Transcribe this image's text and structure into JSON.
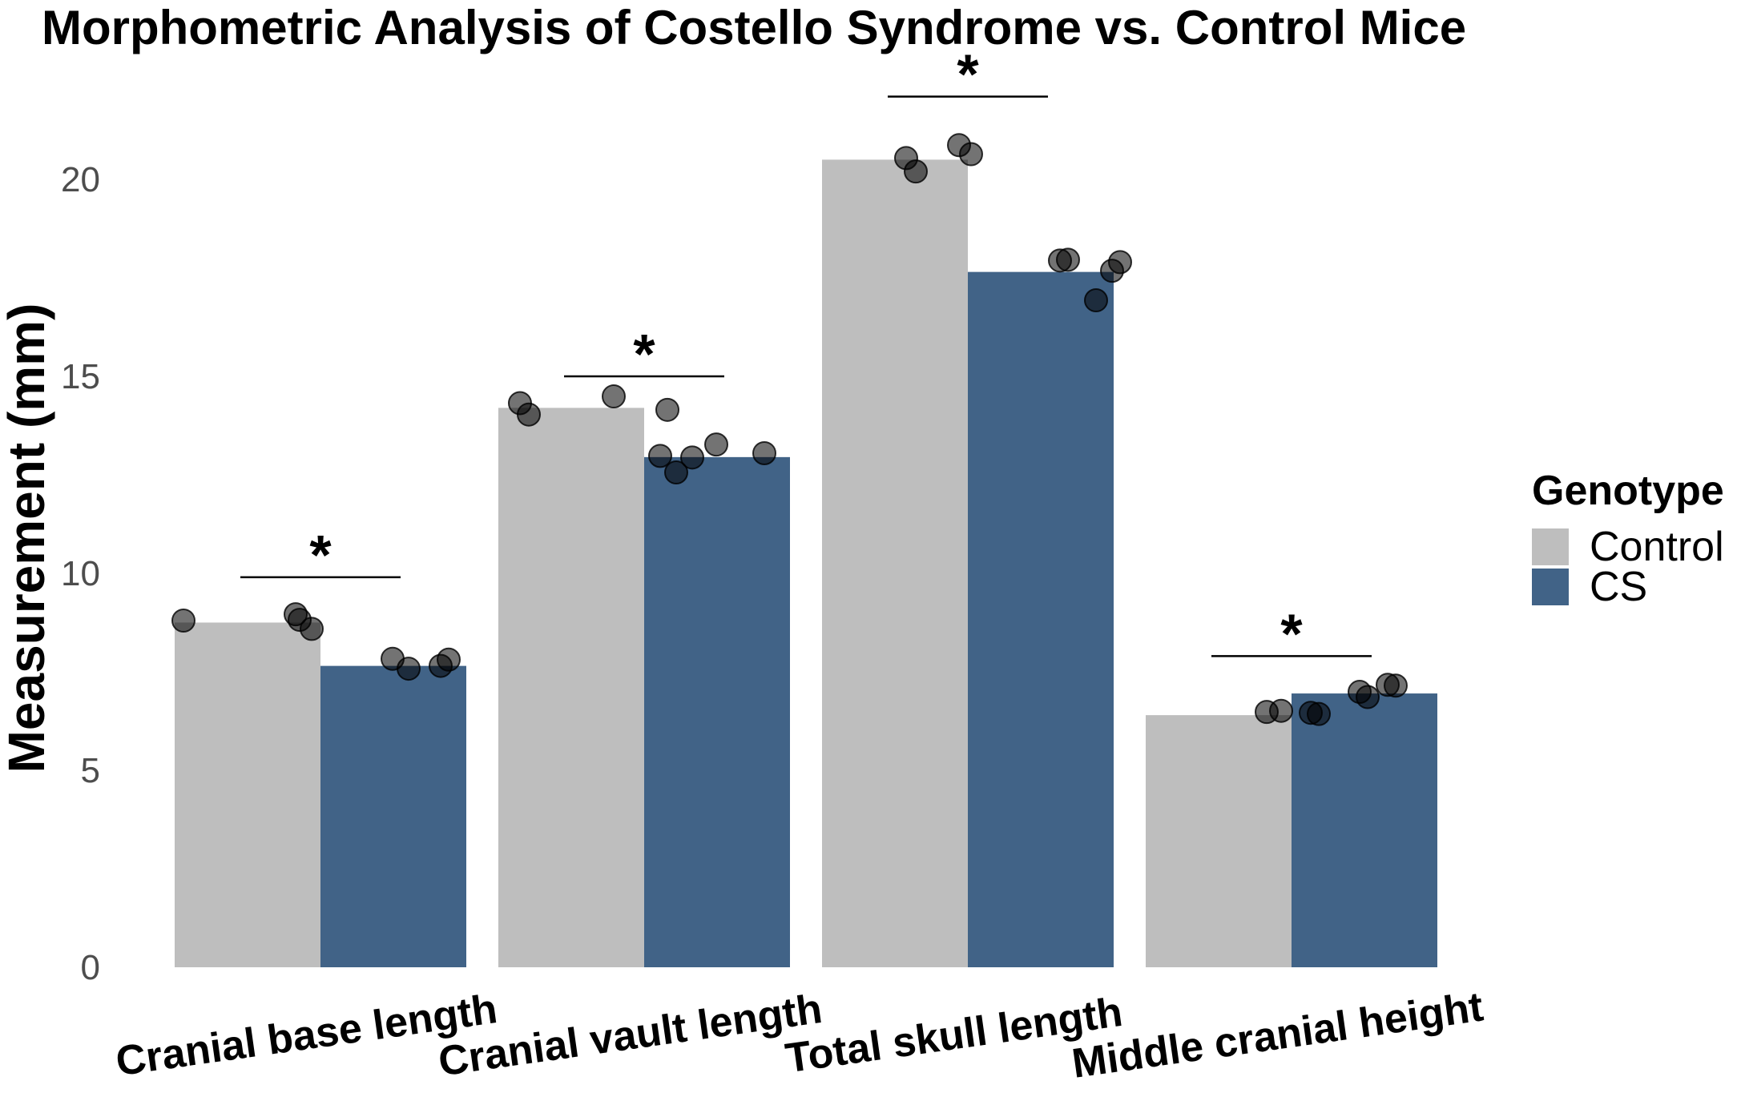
{
  "chart_data": {
    "type": "bar",
    "title": "Morphometric Analysis of Costello Syndrome vs. Control Mice",
    "xlabel": "",
    "ylabel": "Measurement (mm)",
    "ylim": [
      0,
      22
    ],
    "yticks": [
      0,
      5,
      10,
      15,
      20
    ],
    "categories": [
      "Cranial base length",
      "Cranial vault length",
      "Total skull length",
      "Middle cranial height"
    ],
    "legend": {
      "title": "Genotype",
      "position": "right"
    },
    "series": [
      {
        "name": "Control",
        "color": "#bebebe",
        "values": [
          8.75,
          14.2,
          20.5,
          6.4
        ],
        "points": [
          [
            8.75,
            8.95,
            8.85,
            8.6
          ],
          [
            14.3,
            14.0,
            14.45,
            14.15
          ],
          [
            20.5,
            20.2,
            20.9,
            20.7
          ],
          [
            6.45,
            6.5,
            6.5,
            6.45
          ]
        ]
      },
      {
        "name": "CS",
        "color": "#416387",
        "values": [
          7.65,
          12.95,
          17.65,
          6.95
        ],
        "points": [
          [
            7.8,
            7.6,
            7.6,
            7.85
          ],
          [
            12.95,
            12.55,
            12.9,
            13.3,
            13.1
          ],
          [
            17.9,
            18.0,
            16.9,
            17.7,
            17.95
          ],
          [
            6.95,
            6.85,
            7.2,
            7.2
          ]
        ]
      }
    ],
    "significance": [
      {
        "category": "Cranial base length",
        "label": "*",
        "y": 9.9
      },
      {
        "category": "Cranial vault length",
        "label": "*",
        "y": 15.0
      },
      {
        "category": "Total skull length",
        "label": "*",
        "y": 22.1
      },
      {
        "category": "Middle cranial height",
        "label": "*",
        "y": 7.9
      }
    ],
    "grid": false
  }
}
